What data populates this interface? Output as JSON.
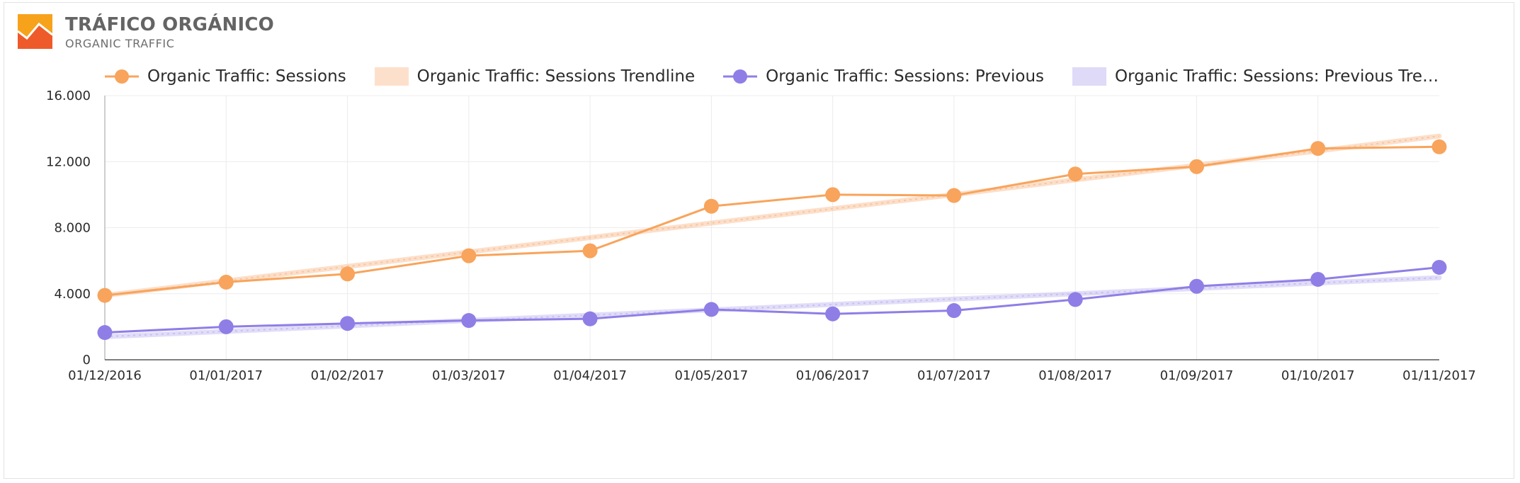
{
  "header": {
    "title": "TRÁFICO ORGÁNICO",
    "subtitle": "ORGANIC TRAFFIC",
    "logo_icon": "trend-chart-icon",
    "logo_colors": [
      "#f7a21b",
      "#ee5a2a"
    ]
  },
  "legend": [
    {
      "label": "Organic Traffic: Sessions",
      "kind": "line-marker",
      "color": "#f8a45c"
    },
    {
      "label": "Organic Traffic: Sessions Trendline",
      "kind": "band",
      "color": "#fde0cc"
    },
    {
      "label": "Organic Traffic: Sessions: Previous",
      "kind": "line-marker",
      "color": "#8f7ee6"
    },
    {
      "label": "Organic Traffic: Sessions: Previous Tren...",
      "kind": "band",
      "color": "#dedaf7"
    }
  ],
  "chart_data": {
    "type": "line",
    "categories": [
      "01/12/2016",
      "01/01/2017",
      "01/02/2017",
      "01/03/2017",
      "01/04/2017",
      "01/05/2017",
      "01/06/2017",
      "01/07/2017",
      "01/08/2017",
      "01/09/2017",
      "01/10/2017",
      "01/11/2017"
    ],
    "yticks": [
      "0",
      "4.000",
      "8.000",
      "12.000",
      "16.000"
    ],
    "ylim": [
      0,
      16000
    ],
    "grid": true,
    "legend_position": "top",
    "series": [
      {
        "name": "Organic Traffic: Sessions",
        "color": "#f8a45c",
        "style": "line-marker",
        "values": [
          3900,
          4700,
          5200,
          6300,
          6600,
          9300,
          10000,
          9950,
          11250,
          11700,
          12800,
          12900
        ]
      },
      {
        "name": "Organic Traffic: Sessions Trendline",
        "color": "#f8b98a",
        "style": "trend",
        "values": [
          3900,
          4780,
          5650,
          6530,
          7400,
          8280,
          9150,
          10000,
          10900,
          11780,
          12650,
          13550
        ]
      },
      {
        "name": "Organic Traffic: Sessions: Previous",
        "color": "#8f7ee6",
        "style": "line-marker",
        "values": [
          1650,
          2000,
          2200,
          2380,
          2480,
          3050,
          2780,
          2980,
          3650,
          4450,
          4870,
          5600
        ]
      },
      {
        "name": "Organic Traffic: Sessions: Previous Trendline",
        "color": "#bdb3ef",
        "style": "trend",
        "values": [
          1400,
          1720,
          2050,
          2380,
          2700,
          3020,
          3350,
          3680,
          4000,
          4320,
          4650,
          4970
        ]
      }
    ]
  }
}
